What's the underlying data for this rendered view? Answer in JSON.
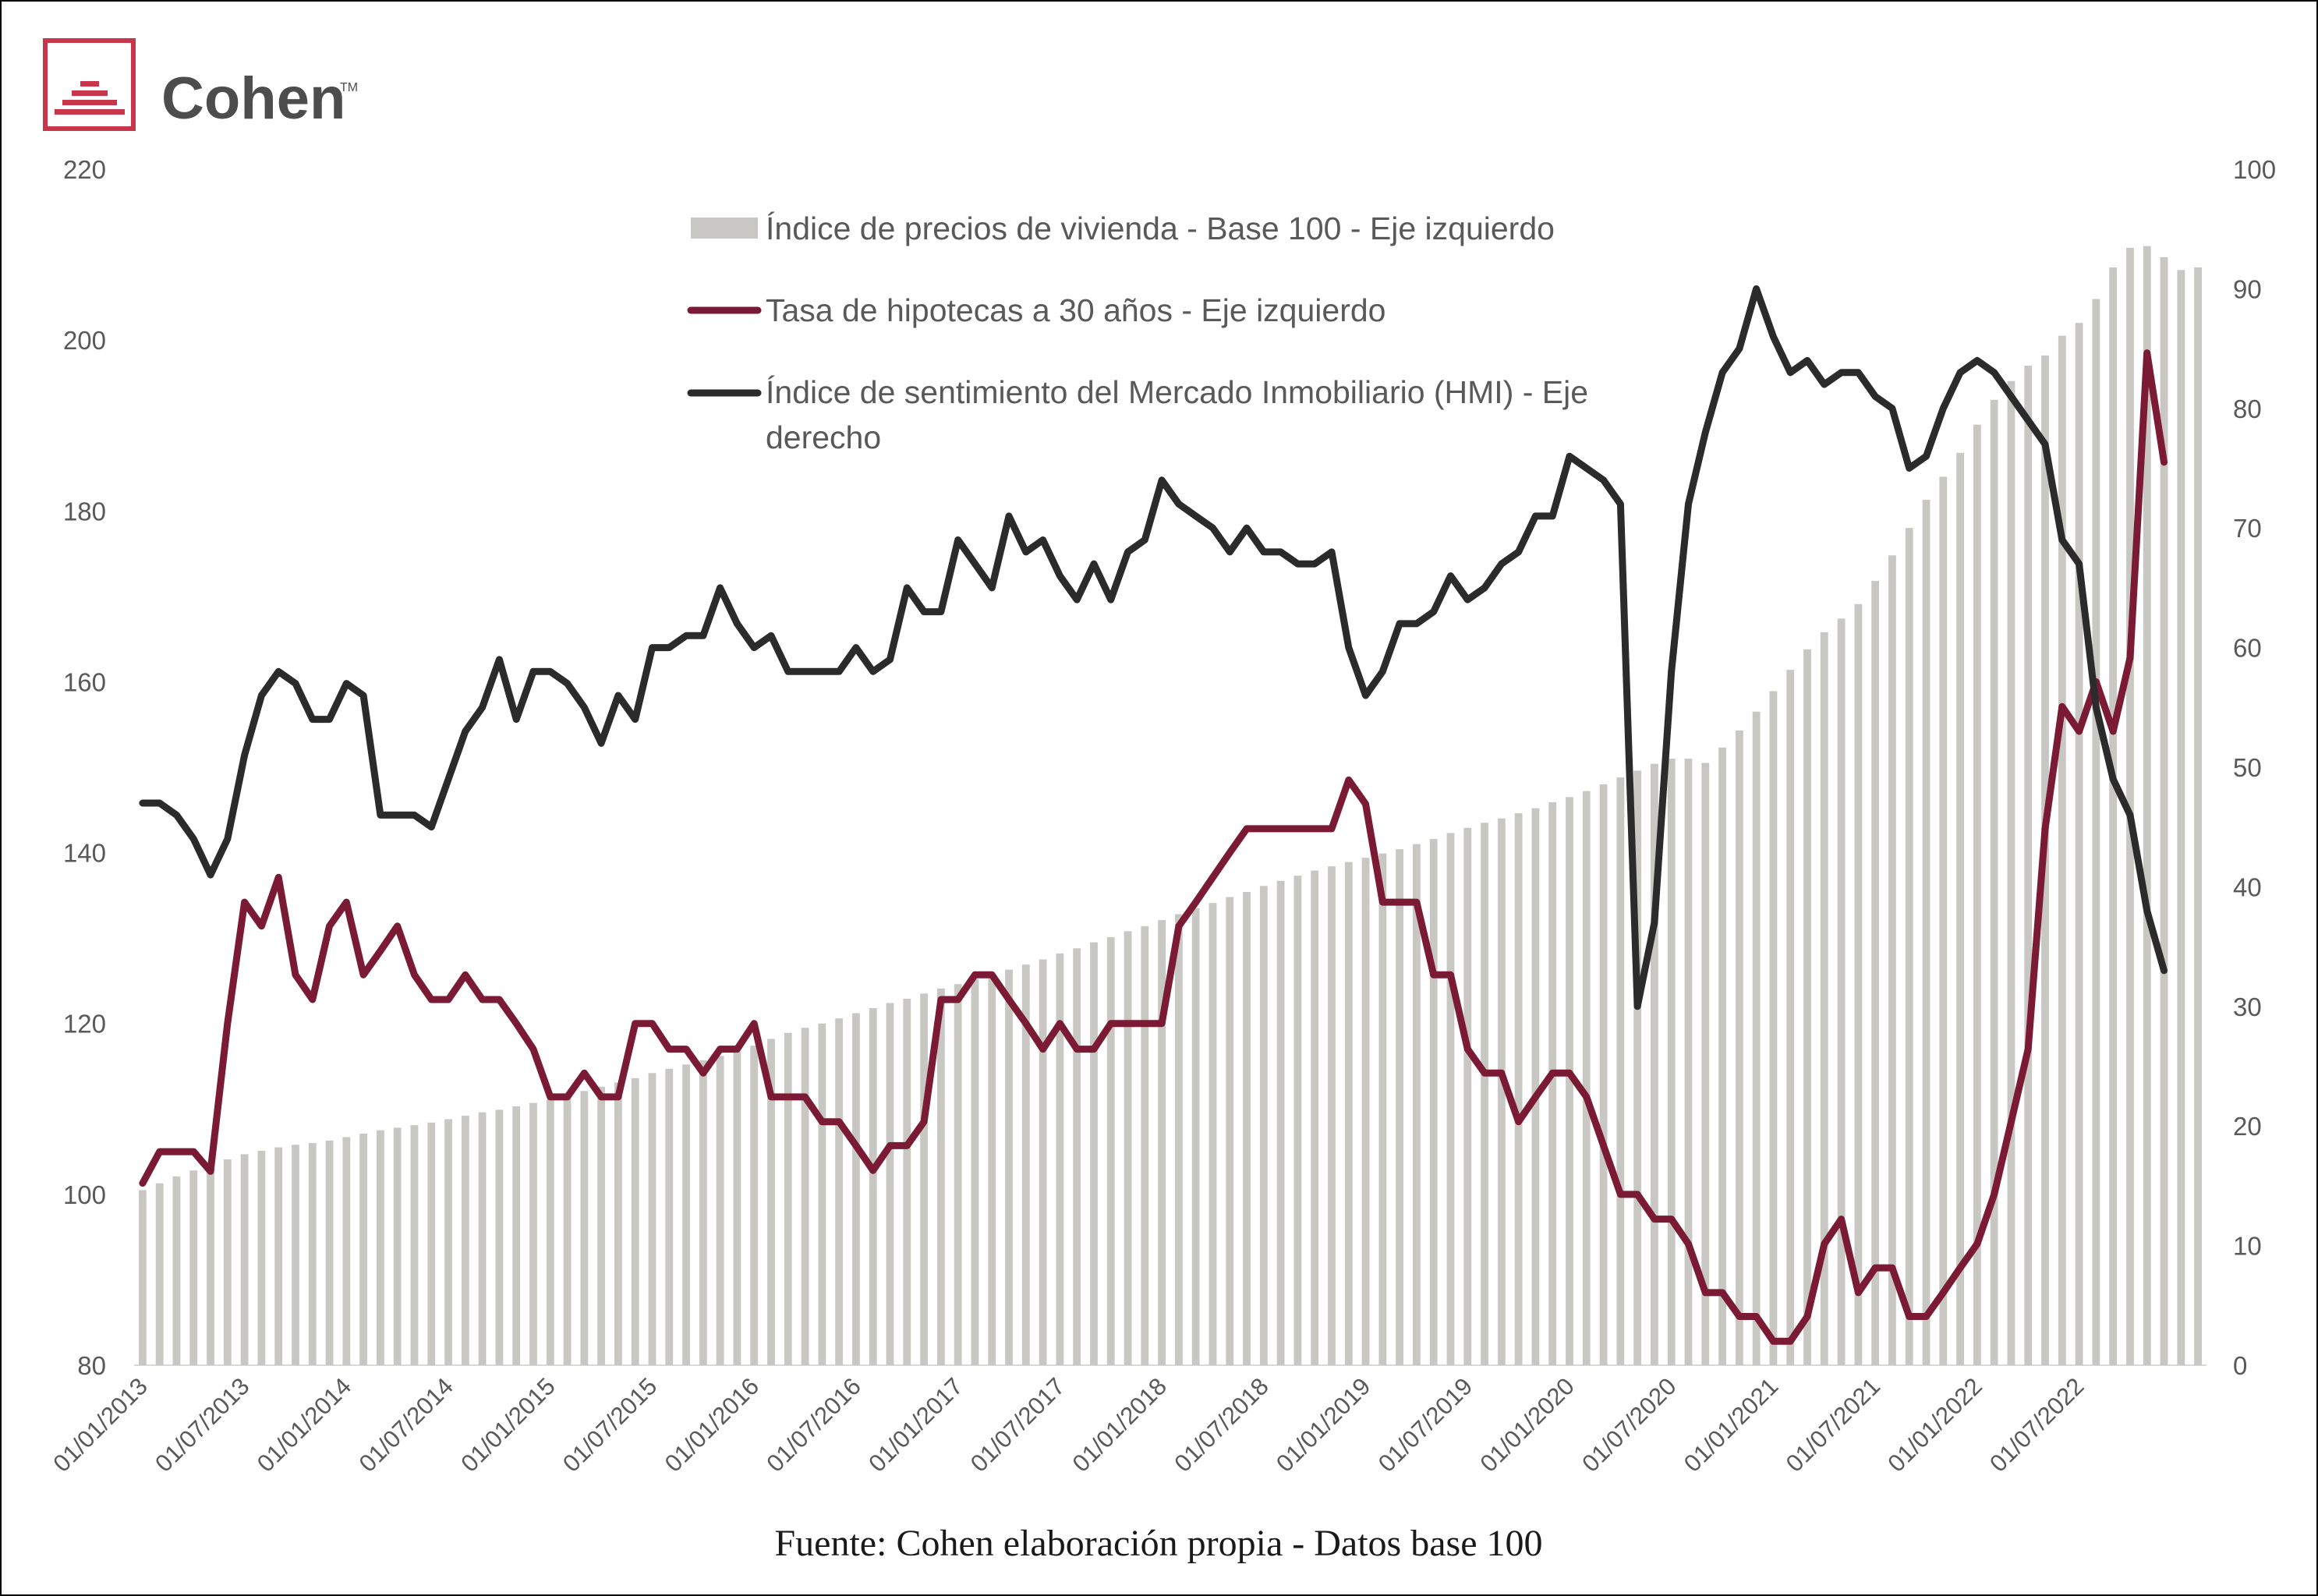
{
  "brand": {
    "name": "Cohen",
    "trademark": "TM"
  },
  "source": "Fuente: Cohen elaboración propia - Datos base 100",
  "chart_data": {
    "type": "bar+line",
    "title": "",
    "left_axis": {
      "min": 80,
      "max": 220,
      "ticks": [
        "80",
        "100",
        "120",
        "140",
        "160",
        "180",
        "200",
        "220"
      ]
    },
    "right_axis": {
      "min": 0,
      "max": 100,
      "ticks": [
        "0",
        "10",
        "20",
        "30",
        "40",
        "50",
        "60",
        "70",
        "80",
        "90",
        "100"
      ]
    },
    "x_tick_labels": [
      "01/01/2013",
      "01/07/2013",
      "01/01/2014",
      "01/07/2014",
      "01/01/2015",
      "01/07/2015",
      "01/01/2016",
      "01/07/2016",
      "01/01/2017",
      "01/07/2017",
      "01/01/2018",
      "01/07/2018",
      "01/01/2019",
      "01/07/2019",
      "01/01/2020",
      "01/07/2020",
      "01/01/2021",
      "01/07/2021",
      "01/01/2022",
      "01/07/2022"
    ],
    "legend": [
      {
        "label": "Índice de precios de vivienda - Base 100 - Eje izquierdo",
        "kind": "bar",
        "color": "#c9c7c3"
      },
      {
        "label": "Tasa de hipotecas a 30 años - Eje izquierdo",
        "kind": "line",
        "color": "#7b1a35"
      },
      {
        "label_line1": "Índice de sentimiento del Mercado Inmobiliario (HMI) - Eje",
        "label_line2": "derecho",
        "kind": "line",
        "color": "#2b2b2b"
      }
    ],
    "series": [
      {
        "name": "Índice de precios de vivienda - Base 100 - Eje izquierdo",
        "axis": "left",
        "type": "bar",
        "color": "#c9c7c3",
        "values": [
          100.5,
          101.3,
          102.1,
          102.8,
          103.4,
          104.1,
          104.7,
          105.1,
          105.5,
          105.8,
          106.0,
          106.3,
          106.7,
          107.1,
          107.5,
          107.8,
          108.1,
          108.4,
          108.8,
          109.2,
          109.6,
          109.9,
          110.3,
          110.7,
          111.1,
          111.6,
          112.1,
          112.6,
          113.1,
          113.6,
          114.2,
          114.7,
          115.2,
          115.7,
          116.2,
          116.7,
          117.4,
          118.2,
          118.9,
          119.5,
          120.0,
          120.6,
          121.2,
          121.8,
          122.4,
          122.9,
          123.5,
          124.1,
          124.6,
          125.2,
          125.8,
          126.3,
          126.9,
          127.5,
          128.2,
          128.8,
          129.5,
          130.1,
          130.8,
          131.4,
          132.1,
          132.8,
          133.5,
          134.1,
          134.8,
          135.4,
          136.1,
          136.7,
          137.3,
          137.9,
          138.4,
          138.9,
          139.4,
          139.9,
          140.4,
          141.0,
          141.6,
          142.3,
          142.9,
          143.5,
          144.0,
          144.6,
          145.2,
          145.9,
          146.5,
          147.2,
          148.0,
          148.8,
          149.6,
          150.4,
          151.0,
          151.0,
          150.5,
          152.3,
          154.3,
          156.5,
          158.9,
          161.4,
          163.8,
          165.8,
          167.4,
          169.1,
          171.8,
          174.8,
          178.0,
          181.3,
          184.0,
          186.8,
          190.1,
          193.0,
          195.2,
          197.0,
          198.2,
          200.5,
          202.0,
          204.8,
          208.5,
          210.8,
          211.0,
          209.7,
          208.2,
          208.5
        ]
      },
      {
        "name": "Tasa de hipotecas a 30 años - Eje izquierdo",
        "axis": "left",
        "type": "line",
        "color": "#7b1a35",
        "values": [
          101.3,
          105,
          105,
          105,
          102.7,
          120,
          134.2,
          131.4,
          137.1,
          125.7,
          122.8,
          131.4,
          134.2,
          125.7,
          128.5,
          131.4,
          125.7,
          122.8,
          122.8,
          125.7,
          122.8,
          122.8,
          120,
          117,
          111.4,
          111.4,
          114.2,
          111.4,
          111.4,
          120,
          120,
          117,
          117,
          114.2,
          117,
          117,
          120,
          111.4,
          111.4,
          111.4,
          108.5,
          108.5,
          105.7,
          102.8,
          105.7,
          105.7,
          108.5,
          122.8,
          122.8,
          125.7,
          125.7,
          122.8,
          120,
          117,
          120,
          117,
          117,
          120,
          120,
          120,
          120,
          131.4,
          134.2,
          137.1,
          140,
          142.8,
          142.8,
          142.8,
          142.8,
          142.8,
          142.8,
          148.5,
          145.7,
          134.2,
          134.2,
          134.2,
          125.7,
          125.7,
          117,
          114.2,
          114.2,
          108.5,
          111.4,
          114.2,
          114.2,
          111.4,
          105.7,
          100,
          100,
          97.1,
          97.1,
          94.2,
          88.5,
          88.5,
          85.7,
          85.7,
          82.8,
          82.8,
          85.7,
          94.2,
          97.1,
          88.5,
          91.4,
          91.4,
          85.7,
          85.7,
          88.5,
          91.4,
          94.2,
          100,
          108.5,
          117,
          142.8,
          157.1,
          154.2,
          160,
          154.2,
          162.8,
          198.5,
          185.7
        ]
      },
      {
        "name": "Índice de sentimiento del Mercado Inmobiliario (HMI) - Eje derecho",
        "axis": "right",
        "type": "line",
        "color": "#2b2b2b",
        "values": [
          47,
          47,
          46,
          44,
          41,
          44,
          51,
          56,
          58,
          57,
          54,
          54,
          57,
          56,
          46,
          46,
          46,
          45,
          49,
          53,
          55,
          59,
          54,
          58,
          58,
          57,
          55,
          52,
          56,
          54,
          60,
          60,
          61,
          61,
          65,
          62,
          60,
          61,
          58,
          58,
          58,
          58,
          60,
          58,
          59,
          65,
          63,
          63,
          69,
          67,
          65,
          71,
          68,
          69,
          66,
          64,
          67,
          64,
          68,
          69,
          74,
          72,
          71,
          70,
          68,
          70,
          68,
          68,
          67,
          67,
          68,
          60,
          56,
          58,
          62,
          62,
          63,
          66,
          64,
          65,
          67,
          68,
          71,
          71,
          76,
          75,
          74,
          72,
          30,
          37,
          58,
          72,
          78,
          83,
          85,
          90,
          86,
          83,
          84,
          82,
          83,
          83,
          81,
          80,
          75,
          76,
          80,
          83,
          84,
          83,
          81,
          79,
          77,
          69,
          67,
          55,
          49,
          46,
          38,
          33
        ]
      }
    ]
  }
}
